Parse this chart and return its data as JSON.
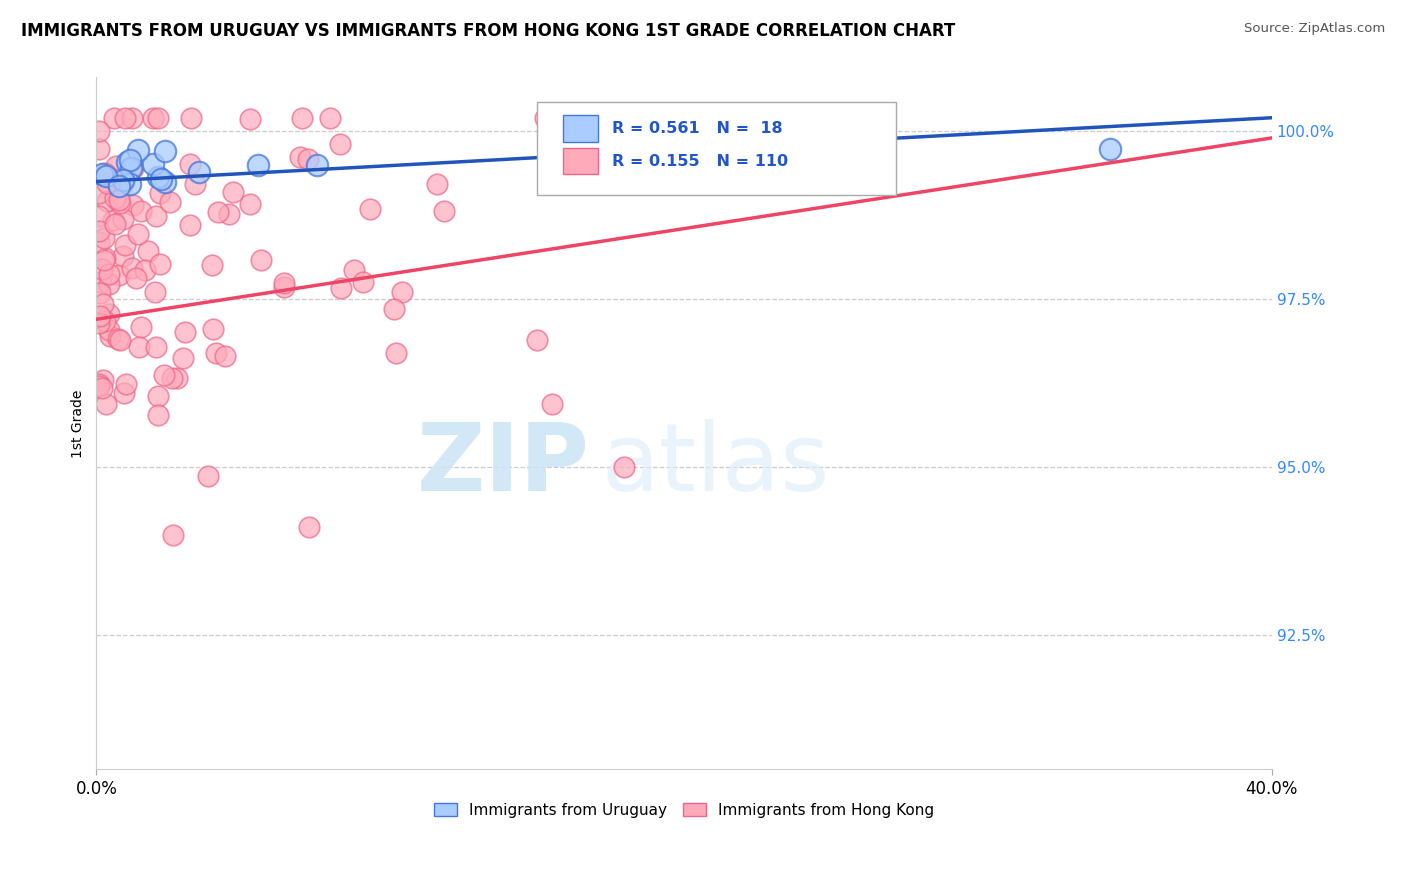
{
  "title": "IMMIGRANTS FROM URUGUAY VS IMMIGRANTS FROM HONG KONG 1ST GRADE CORRELATION CHART",
  "source": "Source: ZipAtlas.com",
  "ylabel": "1st Grade",
  "ylabel_right_ticks": [
    "100.0%",
    "97.5%",
    "95.0%",
    "92.5%"
  ],
  "ylabel_right_values": [
    1.0,
    0.975,
    0.95,
    0.925
  ],
  "xlim": [
    0.0,
    0.4
  ],
  "ylim": [
    0.905,
    1.008
  ],
  "blue_R": 0.561,
  "blue_N": 18,
  "pink_R": 0.155,
  "pink_N": 110,
  "blue_color": "#aaccff",
  "pink_color": "#ffaabb",
  "blue_edge_color": "#4477dd",
  "pink_edge_color": "#ee6688",
  "blue_line_color": "#2255bb",
  "pink_line_color": "#ee4466",
  "legend_label_blue": "Immigrants from Uruguay",
  "legend_label_pink": "Immigrants from Hong Kong",
  "watermark_zip": "ZIP",
  "watermark_atlas": "atlas",
  "blue_line_x0": 0.0,
  "blue_line_y0": 0.9925,
  "blue_line_x1": 0.4,
  "blue_line_y1": 1.002,
  "pink_line_x0": 0.0,
  "pink_line_y0": 0.972,
  "pink_line_x1": 0.4,
  "pink_line_y1": 0.999
}
